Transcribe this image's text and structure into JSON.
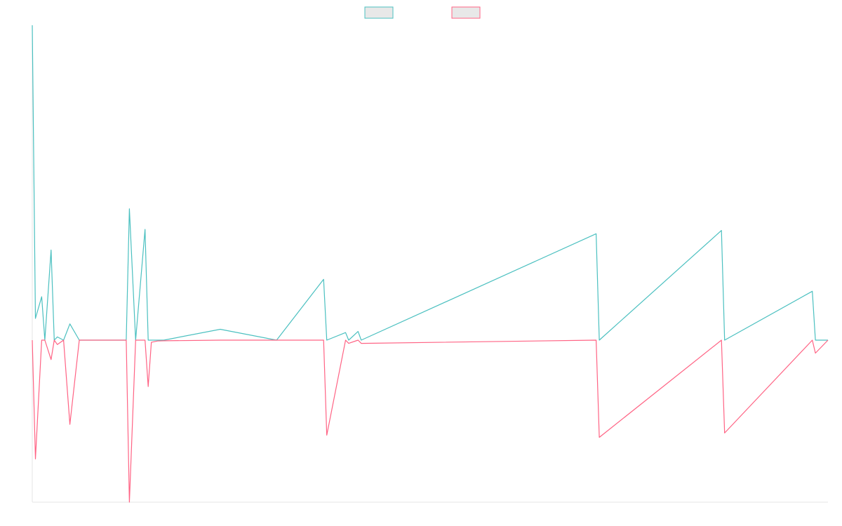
{
  "chart_data": {
    "type": "line",
    "title": "",
    "xlabel": "",
    "ylabel": "",
    "grid": false,
    "legend_position": "top-center",
    "x": [
      0,
      1,
      3,
      4,
      6,
      7,
      8,
      10,
      12,
      15,
      30,
      31,
      33,
      36,
      37,
      38,
      40,
      42,
      60,
      78,
      93,
      94,
      100,
      101,
      104,
      105,
      180,
      181,
      220,
      221,
      249,
      250,
      254
    ],
    "xlim": [
      0,
      254
    ],
    "ylim": [
      -15000,
      29000
    ],
    "series": [
      {
        "name": "",
        "color": "#4bc0c0",
        "fill": "#e8e8e8",
        "values": [
          29000,
          2000,
          4000,
          0,
          8300,
          0,
          300,
          0,
          1500,
          0,
          0,
          12100,
          0,
          10200,
          0,
          0,
          0,
          0,
          1000,
          0,
          5600,
          0,
          700,
          0,
          800,
          0,
          9800,
          0,
          10100,
          0,
          4500,
          0,
          0
        ]
      },
      {
        "name": "",
        "color": "#ff6384",
        "fill": "#e8e8e8",
        "values": [
          0,
          -11000,
          0,
          0,
          -1800,
          0,
          -400,
          0,
          -7800,
          0,
          0,
          -15000,
          0,
          0,
          -4300,
          -200,
          -80,
          -60,
          0,
          0,
          0,
          -8800,
          0,
          -300,
          0,
          -300,
          0,
          -9000,
          0,
          -8600,
          0,
          -1200,
          0
        ]
      }
    ]
  }
}
